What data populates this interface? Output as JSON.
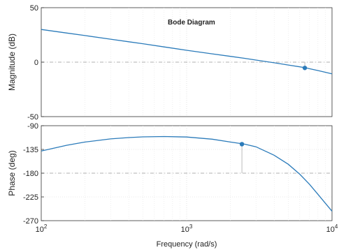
{
  "chart_data": [
    {
      "type": "line",
      "title": "Bode Diagram",
      "ylabel": "Magnitude (dB)",
      "xscale": "log",
      "xlim": [
        100,
        10000
      ],
      "ylim": [
        -50,
        50
      ],
      "yticks": [
        "50",
        "0",
        "-50"
      ],
      "ytick_values": [
        50,
        0,
        -50
      ],
      "reference_line": 0,
      "grid": true,
      "series": [
        {
          "color": "#2b7bba",
          "x": [
            100,
            150,
            200,
            300,
            400,
            500,
            700,
            1000,
            1500,
            2000,
            2500,
            3000,
            4000,
            5000,
            6000,
            6700,
            7000,
            8000,
            9000,
            10000
          ],
          "y": [
            30,
            26.7,
            24.4,
            21.1,
            18.7,
            16.9,
            14.0,
            10.9,
            7.6,
            5.3,
            3.5,
            1.9,
            -0.6,
            -2.6,
            -4.3,
            -5.4,
            -6.0,
            -7.7,
            -9.3,
            -10.8
          ]
        }
      ],
      "marker": {
        "x": 6500,
        "y": -5.3
      }
    },
    {
      "type": "line",
      "ylabel": "Phase (deg)",
      "xlabel": "Frequency  (rad/s)",
      "xscale": "log",
      "xlim": [
        100,
        10000
      ],
      "ylim": [
        -270,
        -90
      ],
      "yticks": [
        "-90",
        "-135",
        "-180",
        "-225",
        "-270"
      ],
      "ytick_values": [
        -90,
        -135,
        -180,
        -225,
        -270
      ],
      "xticks": [
        {
          "base": "10",
          "exp": "2",
          "value": 100
        },
        {
          "base": "10",
          "exp": "3",
          "value": 1000
        },
        {
          "base": "10",
          "exp": "4",
          "value": 10000
        }
      ],
      "reference_line": -180,
      "grid": true,
      "series": [
        {
          "color": "#2b7bba",
          "x": [
            100,
            150,
            200,
            300,
            400,
            500,
            700,
            1000,
            1500,
            2000,
            2500,
            3000,
            4000,
            5000,
            6000,
            7000,
            8000,
            9000,
            10000
          ],
          "y": [
            -138,
            -127,
            -121,
            -115,
            -112.5,
            -111.2,
            -110.5,
            -111.5,
            -115.5,
            -121,
            -125,
            -130,
            -146,
            -163,
            -182,
            -201,
            -220,
            -237,
            -252
          ]
        }
      ],
      "marker": {
        "x": 2400,
        "y": -125
      }
    }
  ]
}
